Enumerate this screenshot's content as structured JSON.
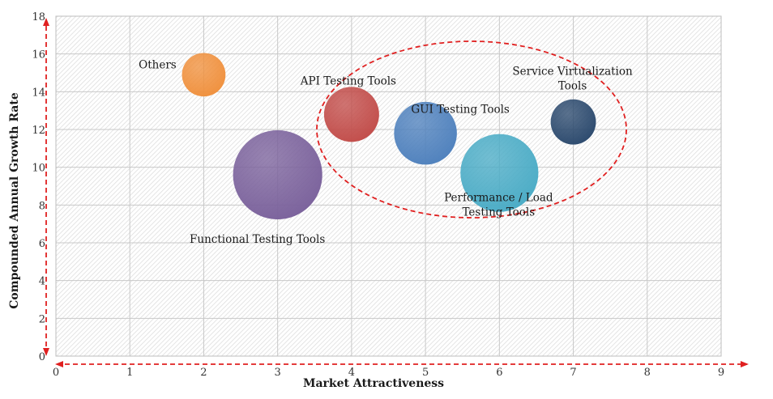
{
  "chart_data": {
    "type": "scatter",
    "subtype": "bubble",
    "xlabel": "Market Attractiveness",
    "ylabel": "Compounded  Annual  Growth Rate",
    "xlim": [
      0,
      9
    ],
    "ylim": [
      0,
      18
    ],
    "x_ticks": [
      "0",
      "1",
      "2",
      "3",
      "4",
      "5",
      "6",
      "7",
      "8",
      "9"
    ],
    "y_ticks": [
      "0",
      "2",
      "4",
      "6",
      "8",
      "10",
      "12",
      "14",
      "16",
      "18"
    ],
    "grid": true,
    "points": [
      {
        "label": "Others",
        "x": 2,
        "y": 14.9,
        "size": 2.5,
        "color": "#f0913e"
      },
      {
        "label": "Functional Testing Tools",
        "x": 3,
        "y": 9.6,
        "size": 10.5,
        "color": "#7b629c"
      },
      {
        "label": "API Testing Tools",
        "x": 4,
        "y": 12.8,
        "size": 4.0,
        "color": "#c24d4a"
      },
      {
        "label": "GUI Testing Tools",
        "x": 5,
        "y": 11.8,
        "size": 5.2,
        "color": "#4f81bd"
      },
      {
        "label": "Performance / Load Testing Tools",
        "x": 6,
        "y": 9.7,
        "size": 8.0,
        "color": "#4bacc6"
      },
      {
        "label": "Service Virtualization Tools",
        "x": 7,
        "y": 12.4,
        "size": 2.7,
        "color": "#2c4a6e"
      }
    ],
    "highlight_color": "#e02020"
  }
}
